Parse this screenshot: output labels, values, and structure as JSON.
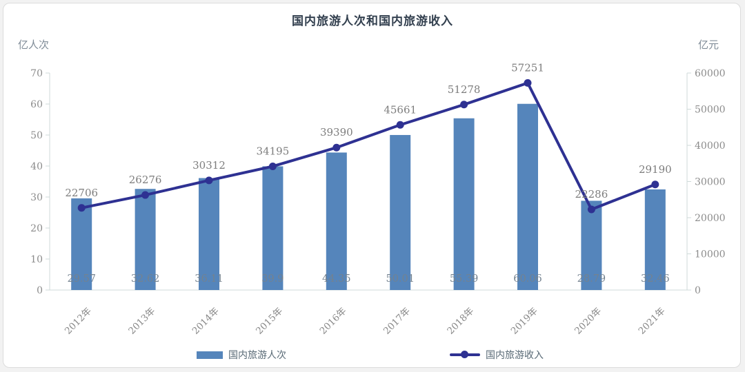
{
  "page": {
    "background": "#f2f2f2",
    "card_background": "#ffffff"
  },
  "chart_data": {
    "type": "bar",
    "title": "国内旅游人次和国内旅游收入",
    "categories": [
      "2012年",
      "2013年",
      "2014年",
      "2015年",
      "2016年",
      "2017年",
      "2018年",
      "2019年",
      "2020年",
      "2021年"
    ],
    "series": [
      {
        "name": "国内旅游人次",
        "type": "bar",
        "axis": "left",
        "unit": "亿人次",
        "color": "#5585bb",
        "values": [
          29.57,
          32.62,
          36.11,
          39.9,
          44.35,
          50.01,
          55.39,
          60.06,
          28.79,
          32.46
        ],
        "labels": [
          "29.57",
          "32.62",
          "36.11",
          "39.9",
          "44.35",
          "50.01",
          "55.39",
          "60.06",
          "28.79",
          "32.46"
        ]
      },
      {
        "name": "国内旅游收入",
        "type": "line",
        "axis": "right",
        "unit": "亿元",
        "color": "#2e3192",
        "values": [
          22706,
          26276,
          30312,
          34195,
          39390,
          45661,
          51278,
          57251,
          22286,
          29190
        ],
        "labels": [
          "22706",
          "26276",
          "30312",
          "34195",
          "39390",
          "45661",
          "51278",
          "57251",
          "22286",
          "29190"
        ]
      }
    ],
    "left_axis": {
      "label": "亿人次",
      "min": 0,
      "max": 70,
      "step": 10,
      "ticks": [
        "0",
        "10",
        "20",
        "30",
        "40",
        "50",
        "60",
        "70"
      ]
    },
    "right_axis": {
      "label": "亿元",
      "min": 0,
      "max": 60000,
      "step": 10000,
      "ticks": [
        "0",
        "10000",
        "20000",
        "30000",
        "40000",
        "50000",
        "60000"
      ]
    },
    "grid": false,
    "legend_position": "bottom",
    "style": {
      "axis_line_color": "#cfdad9",
      "tick_label_color": "#8b8b8b",
      "bar_value_label_color": "#74828f",
      "line_value_label_color": "#7d7d7d",
      "x_label_color": "#898989",
      "title_color": "#33404f",
      "legend_label_color": "#596a76"
    }
  }
}
